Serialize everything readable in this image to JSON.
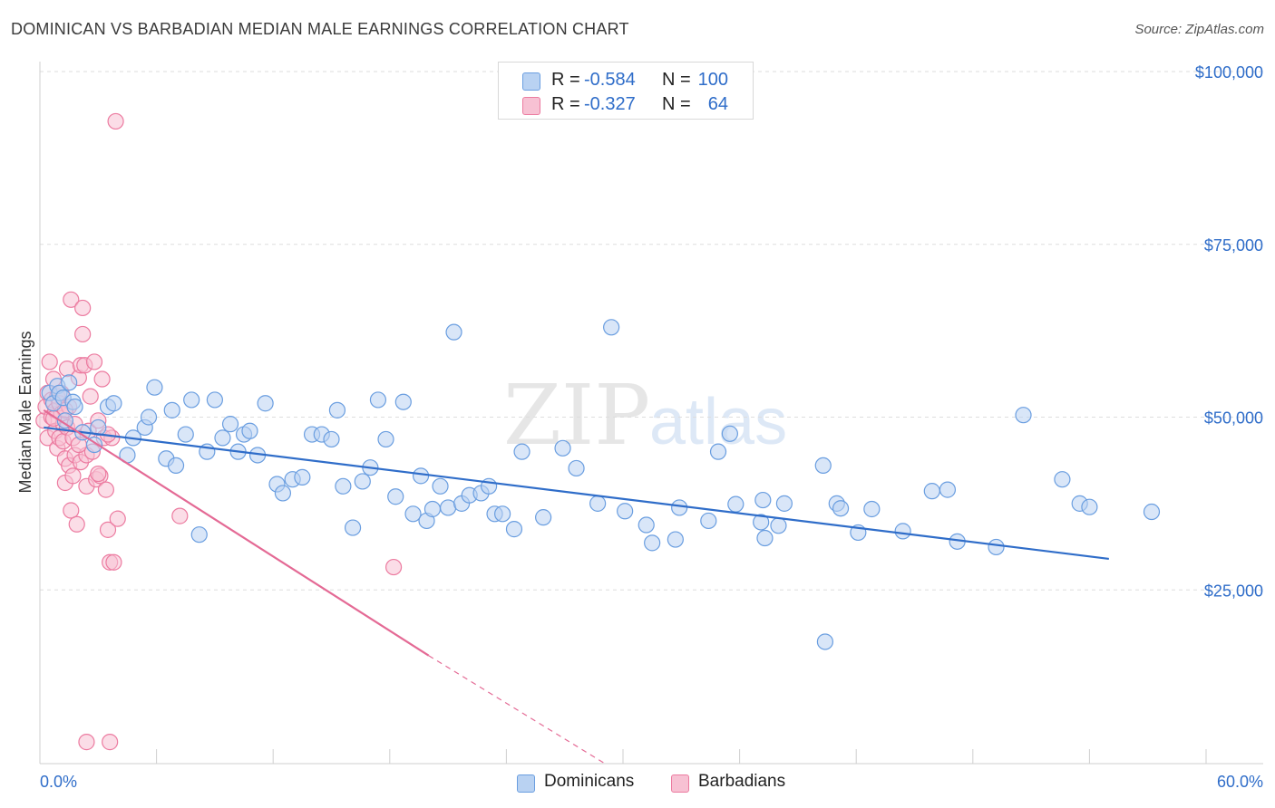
{
  "title": "DOMINICAN VS BARBADIAN MEDIAN MALE EARNINGS CORRELATION CHART",
  "source": "Source: ZipAtlas.com",
  "watermark": {
    "zip": "ZIP",
    "atlas": "atlas"
  },
  "colors": {
    "dominicans": "#6a9ee0",
    "dominicans_fill": "#b9d2f2",
    "barbadians": "#ec7ba0",
    "barbadians_fill": "#f7c1d3",
    "blue_line": "#2f6dc9",
    "pink_line": "#e46a95",
    "axis_label": "#2f6dc9",
    "grid": "#dddddd"
  },
  "legend_top": [
    {
      "r_label": "R =",
      "r_value": "-0.584",
      "n_label": "N =",
      "n_value": "100"
    },
    {
      "r_label": "R =",
      "r_value": "-0.327",
      "n_label": "N =",
      "n_value": "64"
    }
  ],
  "legend_bottom": [
    "Dominicans",
    "Barbadians"
  ],
  "chart_data": {
    "type": "scatter",
    "title": "DOMINICAN VS BARBADIAN MEDIAN MALE EARNINGS CORRELATION CHART",
    "xlabel": "",
    "ylabel": "Median Male Earnings",
    "x_tick_labels": {
      "left": "0.0%",
      "right": "60.0%"
    },
    "y_tick_labels": [
      "$25,000",
      "$50,000",
      "$75,000",
      "$100,000"
    ],
    "y_ticks": [
      25000,
      50000,
      75000,
      100000
    ],
    "xlim": [
      0,
      60
    ],
    "ylim": [
      0,
      100000
    ],
    "grid": true,
    "legend_position": "top-center",
    "series": [
      {
        "name": "Dominicans",
        "r": -0.584,
        "n": 100,
        "trend": {
          "x": [
            0.2,
            55.0
          ],
          "y": [
            48500,
            29500
          ]
        },
        "points": [
          [
            0.5,
            53500
          ],
          [
            0.7,
            52000
          ],
          [
            0.9,
            54500
          ],
          [
            1.0,
            53500
          ],
          [
            1.2,
            52800
          ],
          [
            1.3,
            49500
          ],
          [
            1.5,
            55000
          ],
          [
            1.7,
            52200
          ],
          [
            1.8,
            51500
          ],
          [
            2.2,
            47800
          ],
          [
            2.8,
            46000
          ],
          [
            3.0,
            48500
          ],
          [
            3.5,
            51500
          ],
          [
            3.8,
            52000
          ],
          [
            4.5,
            44500
          ],
          [
            4.8,
            47000
          ],
          [
            5.4,
            48500
          ],
          [
            5.6,
            50000
          ],
          [
            5.9,
            54300
          ],
          [
            6.5,
            44000
          ],
          [
            6.8,
            51000
          ],
          [
            7.0,
            43000
          ],
          [
            7.5,
            47500
          ],
          [
            7.8,
            52500
          ],
          [
            8.2,
            33000
          ],
          [
            8.6,
            45000
          ],
          [
            9.0,
            52500
          ],
          [
            9.4,
            47000
          ],
          [
            9.8,
            49000
          ],
          [
            10.2,
            45000
          ],
          [
            10.5,
            47500
          ],
          [
            10.8,
            48000
          ],
          [
            11.2,
            44500
          ],
          [
            11.6,
            52000
          ],
          [
            12.2,
            40300
          ],
          [
            12.5,
            39000
          ],
          [
            13.0,
            41000
          ],
          [
            13.5,
            41300
          ],
          [
            14.0,
            47500
          ],
          [
            14.5,
            47500
          ],
          [
            15.0,
            46800
          ],
          [
            15.3,
            51000
          ],
          [
            15.6,
            40000
          ],
          [
            16.1,
            34000
          ],
          [
            16.6,
            40700
          ],
          [
            17.0,
            42700
          ],
          [
            17.4,
            52500
          ],
          [
            17.8,
            46800
          ],
          [
            18.3,
            38500
          ],
          [
            18.7,
            52200
          ],
          [
            19.2,
            36000
          ],
          [
            19.6,
            41500
          ],
          [
            19.9,
            35000
          ],
          [
            20.2,
            36700
          ],
          [
            20.6,
            40000
          ],
          [
            21.0,
            36900
          ],
          [
            21.3,
            62300
          ],
          [
            21.7,
            37500
          ],
          [
            22.1,
            38700
          ],
          [
            22.7,
            39000
          ],
          [
            23.1,
            40000
          ],
          [
            23.4,
            36000
          ],
          [
            23.8,
            36000
          ],
          [
            24.4,
            33800
          ],
          [
            24.8,
            45000
          ],
          [
            25.9,
            35500
          ],
          [
            26.9,
            45500
          ],
          [
            27.6,
            42600
          ],
          [
            28.7,
            37500
          ],
          [
            29.4,
            63000
          ],
          [
            30.1,
            36400
          ],
          [
            31.2,
            34400
          ],
          [
            31.5,
            31800
          ],
          [
            32.7,
            32300
          ],
          [
            32.9,
            36900
          ],
          [
            34.4,
            35000
          ],
          [
            34.9,
            45000
          ],
          [
            35.5,
            47600
          ],
          [
            35.8,
            37400
          ],
          [
            37.1,
            34800
          ],
          [
            37.2,
            38000
          ],
          [
            37.3,
            32500
          ],
          [
            38.0,
            34300
          ],
          [
            38.3,
            37500
          ],
          [
            40.3,
            43000
          ],
          [
            41.0,
            37500
          ],
          [
            41.2,
            36800
          ],
          [
            42.1,
            33300
          ],
          [
            42.8,
            36700
          ],
          [
            44.4,
            33500
          ],
          [
            45.9,
            39300
          ],
          [
            46.7,
            39500
          ],
          [
            47.2,
            32000
          ],
          [
            49.2,
            31200
          ],
          [
            50.6,
            50300
          ],
          [
            52.6,
            41000
          ],
          [
            53.5,
            37500
          ],
          [
            54.0,
            37000
          ],
          [
            57.2,
            36300
          ],
          [
            40.4,
            17500
          ]
        ]
      },
      {
        "name": "Barbadians",
        "r": -0.327,
        "n": 64,
        "trend": {
          "x": [
            0.2,
            20.0
          ],
          "y": [
            51000,
            15500
          ]
        },
        "trend_extension": {
          "x": [
            20.0,
            29.0
          ],
          "y": [
            15500,
            0
          ]
        },
        "points": [
          [
            0.2,
            49500
          ],
          [
            0.3,
            51500
          ],
          [
            0.4,
            53500
          ],
          [
            0.4,
            47000
          ],
          [
            0.5,
            58000
          ],
          [
            0.6,
            50000
          ],
          [
            0.6,
            52500
          ],
          [
            0.7,
            55500
          ],
          [
            0.8,
            48000
          ],
          [
            0.8,
            51000
          ],
          [
            0.9,
            45500
          ],
          [
            0.9,
            53000
          ],
          [
            1.0,
            47000
          ],
          [
            1.0,
            52000
          ],
          [
            1.1,
            50500
          ],
          [
            1.2,
            49000
          ],
          [
            1.2,
            46500
          ],
          [
            1.3,
            40500
          ],
          [
            1.3,
            44000
          ],
          [
            1.4,
            48500
          ],
          [
            1.4,
            57000
          ],
          [
            1.5,
            43000
          ],
          [
            1.5,
            51500
          ],
          [
            1.6,
            36500
          ],
          [
            1.6,
            67000
          ],
          [
            1.7,
            41500
          ],
          [
            1.7,
            47000
          ],
          [
            1.8,
            44500
          ],
          [
            1.8,
            49000
          ],
          [
            1.9,
            34500
          ],
          [
            2.0,
            55700
          ],
          [
            2.1,
            57500
          ],
          [
            2.1,
            43500
          ],
          [
            2.2,
            62000
          ],
          [
            2.2,
            65800
          ],
          [
            2.3,
            57500
          ],
          [
            2.4,
            40000
          ],
          [
            2.4,
            44500
          ],
          [
            2.5,
            48000
          ],
          [
            2.6,
            53000
          ],
          [
            2.7,
            45000
          ],
          [
            2.8,
            58000
          ],
          [
            2.9,
            41000
          ],
          [
            3.0,
            49500
          ],
          [
            3.1,
            41500
          ],
          [
            3.2,
            55500
          ],
          [
            3.3,
            47000
          ],
          [
            3.4,
            39500
          ],
          [
            3.5,
            33700
          ],
          [
            3.6,
            29000
          ],
          [
            3.7,
            47000
          ],
          [
            3.8,
            29000
          ],
          [
            3.9,
            92800
          ],
          [
            4.0,
            35300
          ],
          [
            3.5,
            47500
          ],
          [
            7.2,
            35700
          ],
          [
            18.2,
            28300
          ],
          [
            2.4,
            3000
          ],
          [
            3.6,
            3000
          ],
          [
            1.3,
            51000
          ],
          [
            2.0,
            46000
          ],
          [
            1.1,
            53500
          ],
          [
            0.7,
            49800
          ],
          [
            3.0,
            41800
          ]
        ]
      }
    ]
  }
}
